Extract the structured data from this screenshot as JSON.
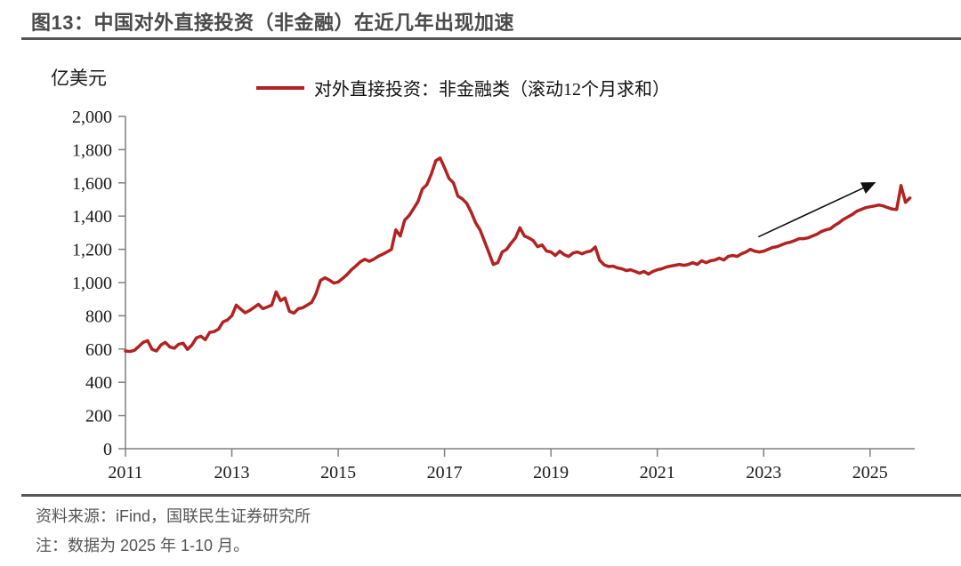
{
  "figure": {
    "number": "图13",
    "title": "图13：中国对外直接投资（非金融）在近几年出现加速",
    "unit_label": "亿美元",
    "legend": "对外直接投资：非金融类（滚动12个月求和）",
    "source": "资料来源：iFind，国联民生证券研究所",
    "note": "注：数据为 2025 年 1-10 月。"
  },
  "colors": {
    "line": "#B22222",
    "axis": "#808080",
    "tick_label": "#1a1a1a",
    "rule": "#565656",
    "arrow": "#111111"
  },
  "chart_data": {
    "type": "line",
    "title": "",
    "ylabel": "亿美元",
    "xlabel": "",
    "ylim": [
      0,
      2000
    ],
    "y_ticks": [
      0,
      200,
      400,
      600,
      800,
      1000,
      1200,
      1400,
      1600,
      1800,
      2000
    ],
    "x_tick_years": [
      2011,
      2013,
      2015,
      2017,
      2019,
      2021,
      2023,
      2025
    ],
    "x_start": {
      "year": 2011,
      "month": 1
    },
    "x_end": {
      "year": 2025,
      "month": 10
    },
    "grid": false,
    "legend_position": "top-center",
    "series": [
      {
        "name": "对外直接投资：非金融类（滚动12个月求和）",
        "frequency": "monthly",
        "values": [
          588,
          585,
          592,
          615,
          640,
          650,
          598,
          588,
          624,
          640,
          613,
          605,
          629,
          635,
          598,
          624,
          667,
          677,
          656,
          700,
          705,
          720,
          763,
          775,
          800,
          864,
          840,
          818,
          832,
          850,
          869,
          843,
          853,
          864,
          944,
          891,
          907,
          827,
          816,
          843,
          848,
          864,
          880,
          933,
          1013,
          1029,
          1015,
          997,
          1003,
          1025,
          1048,
          1077,
          1100,
          1125,
          1140,
          1128,
          1140,
          1157,
          1170,
          1184,
          1200,
          1317,
          1280,
          1376,
          1403,
          1445,
          1487,
          1563,
          1589,
          1653,
          1733,
          1749,
          1691,
          1627,
          1600,
          1520,
          1504,
          1477,
          1424,
          1360,
          1317,
          1250,
          1180,
          1109,
          1120,
          1184,
          1200,
          1237,
          1269,
          1330,
          1280,
          1269,
          1253,
          1216,
          1227,
          1190,
          1184,
          1163,
          1189,
          1168,
          1157,
          1178,
          1184,
          1173,
          1184,
          1190,
          1214,
          1134,
          1107,
          1096,
          1099,
          1088,
          1083,
          1072,
          1077,
          1067,
          1056,
          1067,
          1051,
          1067,
          1077,
          1083,
          1093,
          1099,
          1104,
          1109,
          1104,
          1109,
          1120,
          1109,
          1131,
          1120,
          1131,
          1136,
          1147,
          1136,
          1157,
          1163,
          1157,
          1173,
          1184,
          1200,
          1189,
          1184,
          1189,
          1200,
          1211,
          1216,
          1227,
          1237,
          1243,
          1253,
          1264,
          1264,
          1269,
          1280,
          1291,
          1307,
          1317,
          1323,
          1344,
          1360,
          1380,
          1395,
          1410,
          1429,
          1440,
          1451,
          1456,
          1461,
          1467,
          1461,
          1451,
          1442,
          1440,
          1584,
          1483,
          1509
        ]
      }
    ],
    "annotations": [
      {
        "type": "arrow",
        "from": {
          "year": 2022.9,
          "value": 1275
        },
        "to": {
          "year": 2025.08,
          "value": 1600
        }
      }
    ]
  }
}
